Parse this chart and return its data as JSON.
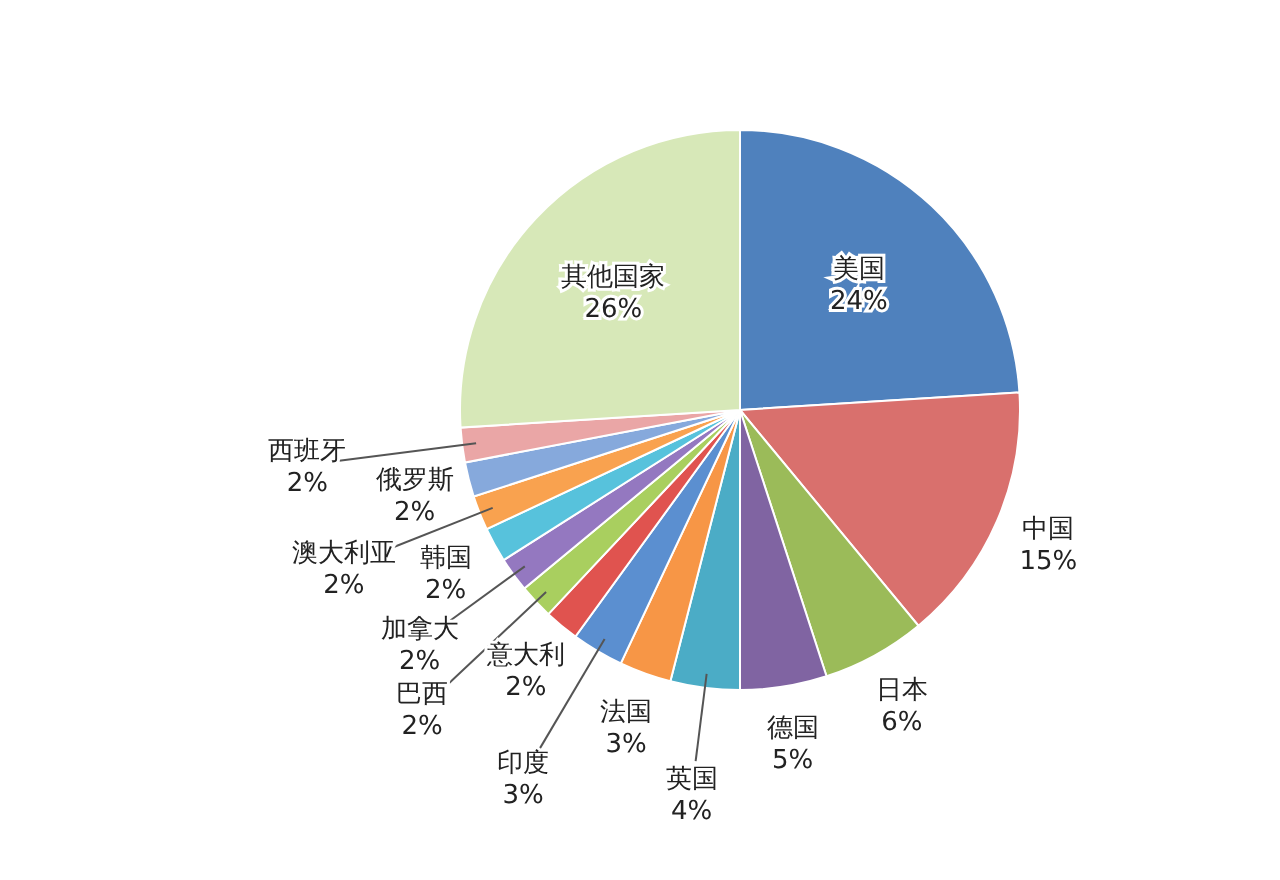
{
  "chart_data": {
    "type": "pie",
    "categories": [
      "美国",
      "中国",
      "日本",
      "德国",
      "英国",
      "法国",
      "印度",
      "意大利",
      "巴西",
      "加拿大",
      "韩国",
      "澳大利亚",
      "俄罗斯",
      "西班牙",
      "其他国家"
    ],
    "values": [
      24,
      15,
      6,
      5,
      4,
      3,
      3,
      2,
      2,
      2,
      2,
      2,
      2,
      2,
      26
    ],
    "value_labels": [
      "24%",
      "15%",
      "6%",
      "5%",
      "4%",
      "3%",
      "3%",
      "2%",
      "2%",
      "2%",
      "2%",
      "2%",
      "2%",
      "2%",
      "26%"
    ],
    "colors": [
      "#4f81bd",
      "#d9706d",
      "#9bbb59",
      "#8064a2",
      "#4bacc6",
      "#f79646",
      "#5b8fd0",
      "#e0534f",
      "#a9cf5f",
      "#9478c0",
      "#57c2dc",
      "#f9a24f",
      "#86a9dc",
      "#eaa6a6",
      "#d7e8b8"
    ]
  }
}
